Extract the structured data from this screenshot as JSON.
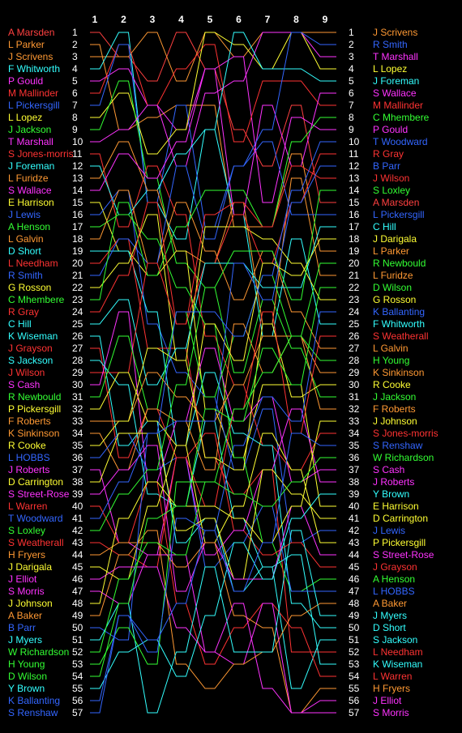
{
  "chart_data": {
    "type": "bump",
    "rounds": [
      "1",
      "2",
      "3",
      "4",
      "5",
      "6",
      "7",
      "8",
      "9"
    ],
    "positions": 57,
    "start_order": [
      {
        "name": "A Marsden",
        "color": "#ff4040"
      },
      {
        "name": "L Parker",
        "color": "#ff9933"
      },
      {
        "name": "J Scrivens",
        "color": "#ff9933"
      },
      {
        "name": "F Whitworth",
        "color": "#33ffff"
      },
      {
        "name": "P Gould",
        "color": "#ff33ff"
      },
      {
        "name": "M Mallinder",
        "color": "#ff3333"
      },
      {
        "name": "L Pickersgill",
        "color": "#3366ff"
      },
      {
        "name": "L Lopez",
        "color": "#ffff33"
      },
      {
        "name": "J Jackson",
        "color": "#33ff33"
      },
      {
        "name": "T Marshall",
        "color": "#ff33ff"
      },
      {
        "name": "S Jones-morris",
        "color": "#ff3333"
      },
      {
        "name": "J Foreman",
        "color": "#33ffff"
      },
      {
        "name": "L Furidze",
        "color": "#ff9933"
      },
      {
        "name": "S Wallace",
        "color": "#ff33ff"
      },
      {
        "name": "E Harrison",
        "color": "#ffff33"
      },
      {
        "name": "J Lewis",
        "color": "#3366ff"
      },
      {
        "name": "A Henson",
        "color": "#33ff33"
      },
      {
        "name": "L Galvin",
        "color": "#ff9933"
      },
      {
        "name": "D Short",
        "color": "#33ffff"
      },
      {
        "name": "L Needham",
        "color": "#ff3333"
      },
      {
        "name": "R Smith",
        "color": "#3366ff"
      },
      {
        "name": "G Rosson",
        "color": "#ffff33"
      },
      {
        "name": "C Mhembere",
        "color": "#33ff33"
      },
      {
        "name": "R Gray",
        "color": "#ff3333"
      },
      {
        "name": "C Hill",
        "color": "#33ffff"
      },
      {
        "name": "K Wiseman",
        "color": "#33ffff"
      },
      {
        "name": "J Grayson",
        "color": "#ff3333"
      },
      {
        "name": "S Jackson",
        "color": "#33ffff"
      },
      {
        "name": "J Wilson",
        "color": "#ff3333"
      },
      {
        "name": "S Cash",
        "color": "#ff33ff"
      },
      {
        "name": "R Newbould",
        "color": "#33ff33"
      },
      {
        "name": "P Pickersgill",
        "color": "#ffff33"
      },
      {
        "name": "F Roberts",
        "color": "#ff9933"
      },
      {
        "name": "K Sinkinson",
        "color": "#ff9933"
      },
      {
        "name": "R Cooke",
        "color": "#ffff33"
      },
      {
        "name": "L HOBBS",
        "color": "#3366ff"
      },
      {
        "name": "J Roberts",
        "color": "#ff33ff"
      },
      {
        "name": "D Carrington",
        "color": "#ffff33"
      },
      {
        "name": "S Street-Rose",
        "color": "#ff33ff"
      },
      {
        "name": "L Warren",
        "color": "#ff3333"
      },
      {
        "name": "T Woodward",
        "color": "#3366ff"
      },
      {
        "name": "S Loxley",
        "color": "#33ff33"
      },
      {
        "name": "S Weatherall",
        "color": "#ff3333"
      },
      {
        "name": "H Fryers",
        "color": "#ff9933"
      },
      {
        "name": "J Darigala",
        "color": "#ffff33"
      },
      {
        "name": "J Elliot",
        "color": "#ff33ff"
      },
      {
        "name": "S Morris",
        "color": "#ff33ff"
      },
      {
        "name": "J Johnson",
        "color": "#ffff33"
      },
      {
        "name": "A Baker",
        "color": "#ff9933"
      },
      {
        "name": "B Parr",
        "color": "#3366ff"
      },
      {
        "name": "J Myers",
        "color": "#33ffff"
      },
      {
        "name": "W Richardson",
        "color": "#33ff33"
      },
      {
        "name": "H Young",
        "color": "#33ff33"
      },
      {
        "name": "D Wilson",
        "color": "#33ff33"
      },
      {
        "name": "Y Brown",
        "color": "#33ffff"
      },
      {
        "name": "K Ballanting",
        "color": "#3366ff"
      },
      {
        "name": "S Renshaw",
        "color": "#3366ff"
      }
    ],
    "final_order": [
      {
        "name": "J Scrivens",
        "color": "#ff9933"
      },
      {
        "name": "R Smith",
        "color": "#3366ff"
      },
      {
        "name": "T Marshall",
        "color": "#ff33ff"
      },
      {
        "name": "L Lopez",
        "color": "#ffff33"
      },
      {
        "name": "J Foreman",
        "color": "#33ffff"
      },
      {
        "name": "S Wallace",
        "color": "#ff33ff"
      },
      {
        "name": "M Mallinder",
        "color": "#ff3333"
      },
      {
        "name": "C Mhembere",
        "color": "#33ff33"
      },
      {
        "name": "P Gould",
        "color": "#ff33ff"
      },
      {
        "name": "T Woodward",
        "color": "#3366ff"
      },
      {
        "name": "R Gray",
        "color": "#ff3333"
      },
      {
        "name": "B Parr",
        "color": "#3366ff"
      },
      {
        "name": "J Wilson",
        "color": "#ff3333"
      },
      {
        "name": "S Loxley",
        "color": "#33ff33"
      },
      {
        "name": "A Marsden",
        "color": "#ff4040"
      },
      {
        "name": "L Pickersgill",
        "color": "#3366ff"
      },
      {
        "name": "C Hill",
        "color": "#33ffff"
      },
      {
        "name": "J Darigala",
        "color": "#ffff33"
      },
      {
        "name": "L Parker",
        "color": "#ff9933"
      },
      {
        "name": "R Newbould",
        "color": "#33ff33"
      },
      {
        "name": "L Furidze",
        "color": "#ff9933"
      },
      {
        "name": "D Wilson",
        "color": "#33ff33"
      },
      {
        "name": "G Rosson",
        "color": "#ffff33"
      },
      {
        "name": "K Ballanting",
        "color": "#3366ff"
      },
      {
        "name": "F Whitworth",
        "color": "#33ffff"
      },
      {
        "name": "S Weatherall",
        "color": "#ff3333"
      },
      {
        "name": "L Galvin",
        "color": "#ff9933"
      },
      {
        "name": "H Young",
        "color": "#33ff33"
      },
      {
        "name": "K Sinkinson",
        "color": "#ff9933"
      },
      {
        "name": "R Cooke",
        "color": "#ffff33"
      },
      {
        "name": "J Jackson",
        "color": "#33ff33"
      },
      {
        "name": "F Roberts",
        "color": "#ff9933"
      },
      {
        "name": "J Johnson",
        "color": "#ffff33"
      },
      {
        "name": "S Jones-morris",
        "color": "#ff3333"
      },
      {
        "name": "S Renshaw",
        "color": "#3366ff"
      },
      {
        "name": "W Richardson",
        "color": "#33ff33"
      },
      {
        "name": "S Cash",
        "color": "#ff33ff"
      },
      {
        "name": "J Roberts",
        "color": "#ff33ff"
      },
      {
        "name": "Y Brown",
        "color": "#33ffff"
      },
      {
        "name": "E Harrison",
        "color": "#ffff33"
      },
      {
        "name": "D Carrington",
        "color": "#ffff33"
      },
      {
        "name": "J Lewis",
        "color": "#3366ff"
      },
      {
        "name": "P Pickersgill",
        "color": "#ffff33"
      },
      {
        "name": "S Street-Rose",
        "color": "#ff33ff"
      },
      {
        "name": "J Grayson",
        "color": "#ff3333"
      },
      {
        "name": "A Henson",
        "color": "#33ff33"
      },
      {
        "name": "L HOBBS",
        "color": "#3366ff"
      },
      {
        "name": "A Baker",
        "color": "#ff9933"
      },
      {
        "name": "J Myers",
        "color": "#33ffff"
      },
      {
        "name": "D Short",
        "color": "#33ffff"
      },
      {
        "name": "S Jackson",
        "color": "#33ffff"
      },
      {
        "name": "L Needham",
        "color": "#ff3333"
      },
      {
        "name": "K Wiseman",
        "color": "#33ffff"
      },
      {
        "name": "L Warren",
        "color": "#ff3333"
      },
      {
        "name": "H Fryers",
        "color": "#ff9933"
      },
      {
        "name": "J Elliot",
        "color": "#ff33ff"
      },
      {
        "name": "S Morris",
        "color": "#ff33ff"
      }
    ]
  }
}
